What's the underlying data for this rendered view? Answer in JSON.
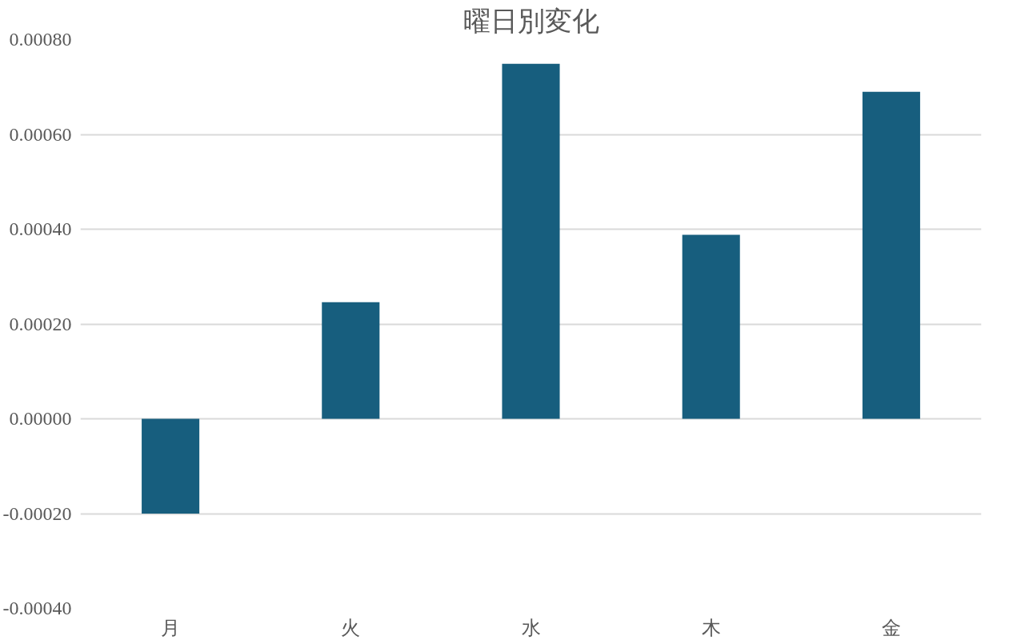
{
  "chart_data": {
    "type": "bar",
    "title": "曜日別変化",
    "categories": [
      "月",
      "火",
      "水",
      "木",
      "金"
    ],
    "values": [
      -0.0002,
      0.000246,
      0.000749,
      0.000388,
      0.00069
    ],
    "color": "#175e7e",
    "ylim": [
      -0.0004,
      0.0008
    ],
    "yticks": [
      {
        "value": -0.0004,
        "label": "-0.00040"
      },
      {
        "value": -0.0002,
        "label": "-0.00020"
      },
      {
        "value": 0,
        "label": "0.00000"
      },
      {
        "value": 0.0002,
        "label": "0.00020"
      },
      {
        "value": 0.0004,
        "label": "0.00040"
      },
      {
        "value": 0.0006,
        "label": "0.00060"
      },
      {
        "value": 0.0008,
        "label": "0.00080"
      }
    ],
    "grid": "y"
  }
}
